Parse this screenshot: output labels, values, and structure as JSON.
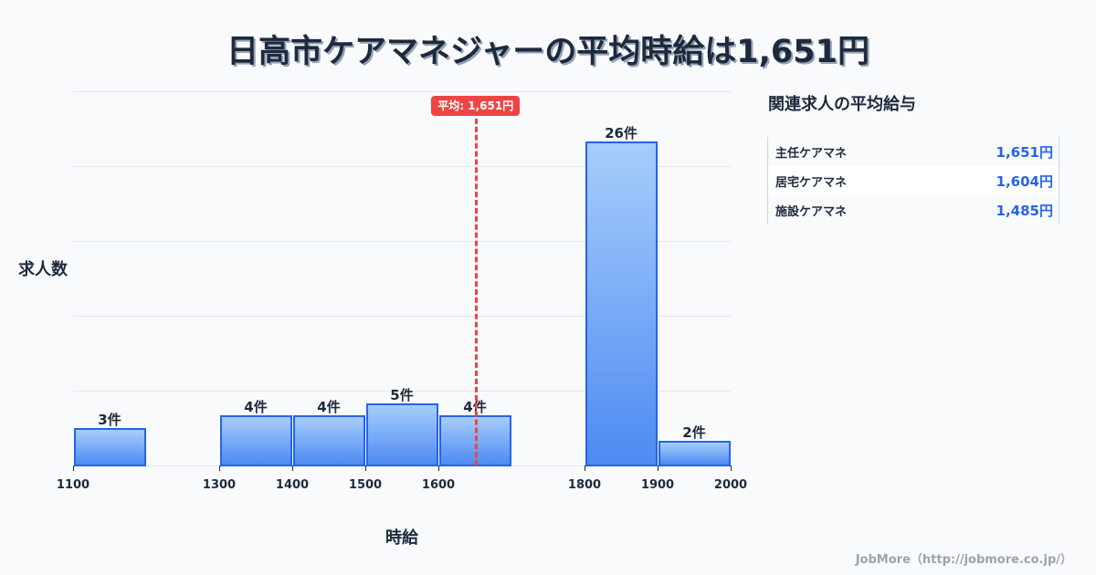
{
  "title": "日高市ケアマネジャーの平均時給は1,651円",
  "chart_data": {
    "type": "bar",
    "title": "日高市ケアマネジャーの平均時給は1,651円",
    "xlabel": "時給",
    "ylabel": "求人数",
    "bins": [
      {
        "from": 1100,
        "to": 1200,
        "count": 3,
        "label": "3件"
      },
      {
        "from": 1300,
        "to": 1400,
        "count": 4,
        "label": "4件"
      },
      {
        "from": 1400,
        "to": 1500,
        "count": 4,
        "label": "4件"
      },
      {
        "from": 1500,
        "to": 1600,
        "count": 5,
        "label": "5件"
      },
      {
        "from": 1600,
        "to": 1700,
        "count": 4,
        "label": "4件"
      },
      {
        "from": 1800,
        "to": 1900,
        "count": 26,
        "label": "26件"
      },
      {
        "from": 1900,
        "to": 2000,
        "count": 2,
        "label": "2件"
      }
    ],
    "categories": [
      "1100-1200",
      "1300-1400",
      "1400-1500",
      "1500-1600",
      "1600-1700",
      "1800-1900",
      "1900-2000"
    ],
    "values": [
      3,
      4,
      4,
      5,
      4,
      26,
      2
    ],
    "x_ticks": [
      "1100",
      "1300",
      "1400",
      "1500",
      "1600",
      "1800",
      "1900",
      "2000"
    ],
    "xlim": [
      1100,
      2000
    ],
    "ylim": [
      0,
      30
    ],
    "grid": true,
    "legend": null,
    "annotations": [
      {
        "type": "vline",
        "x": 1651,
        "label": "平均: 1,651円",
        "color": "#ef4444",
        "style": "dashed"
      }
    ],
    "bar_color": "#4d8af2",
    "bar_border": "#2563eb"
  },
  "average_badge": "平均: 1,651円",
  "axis": {
    "y_title": "求人数",
    "x_title": "時給"
  },
  "related": {
    "title": "関連求人の平均給与",
    "rows": [
      {
        "name": "主任ケアマネ",
        "value": "1,651円"
      },
      {
        "name": "居宅ケアマネ",
        "value": "1,604円"
      },
      {
        "name": "施設ケアマネ",
        "value": "1,485円"
      }
    ]
  },
  "footer": "JobMore（http://jobmore.co.jp/）"
}
